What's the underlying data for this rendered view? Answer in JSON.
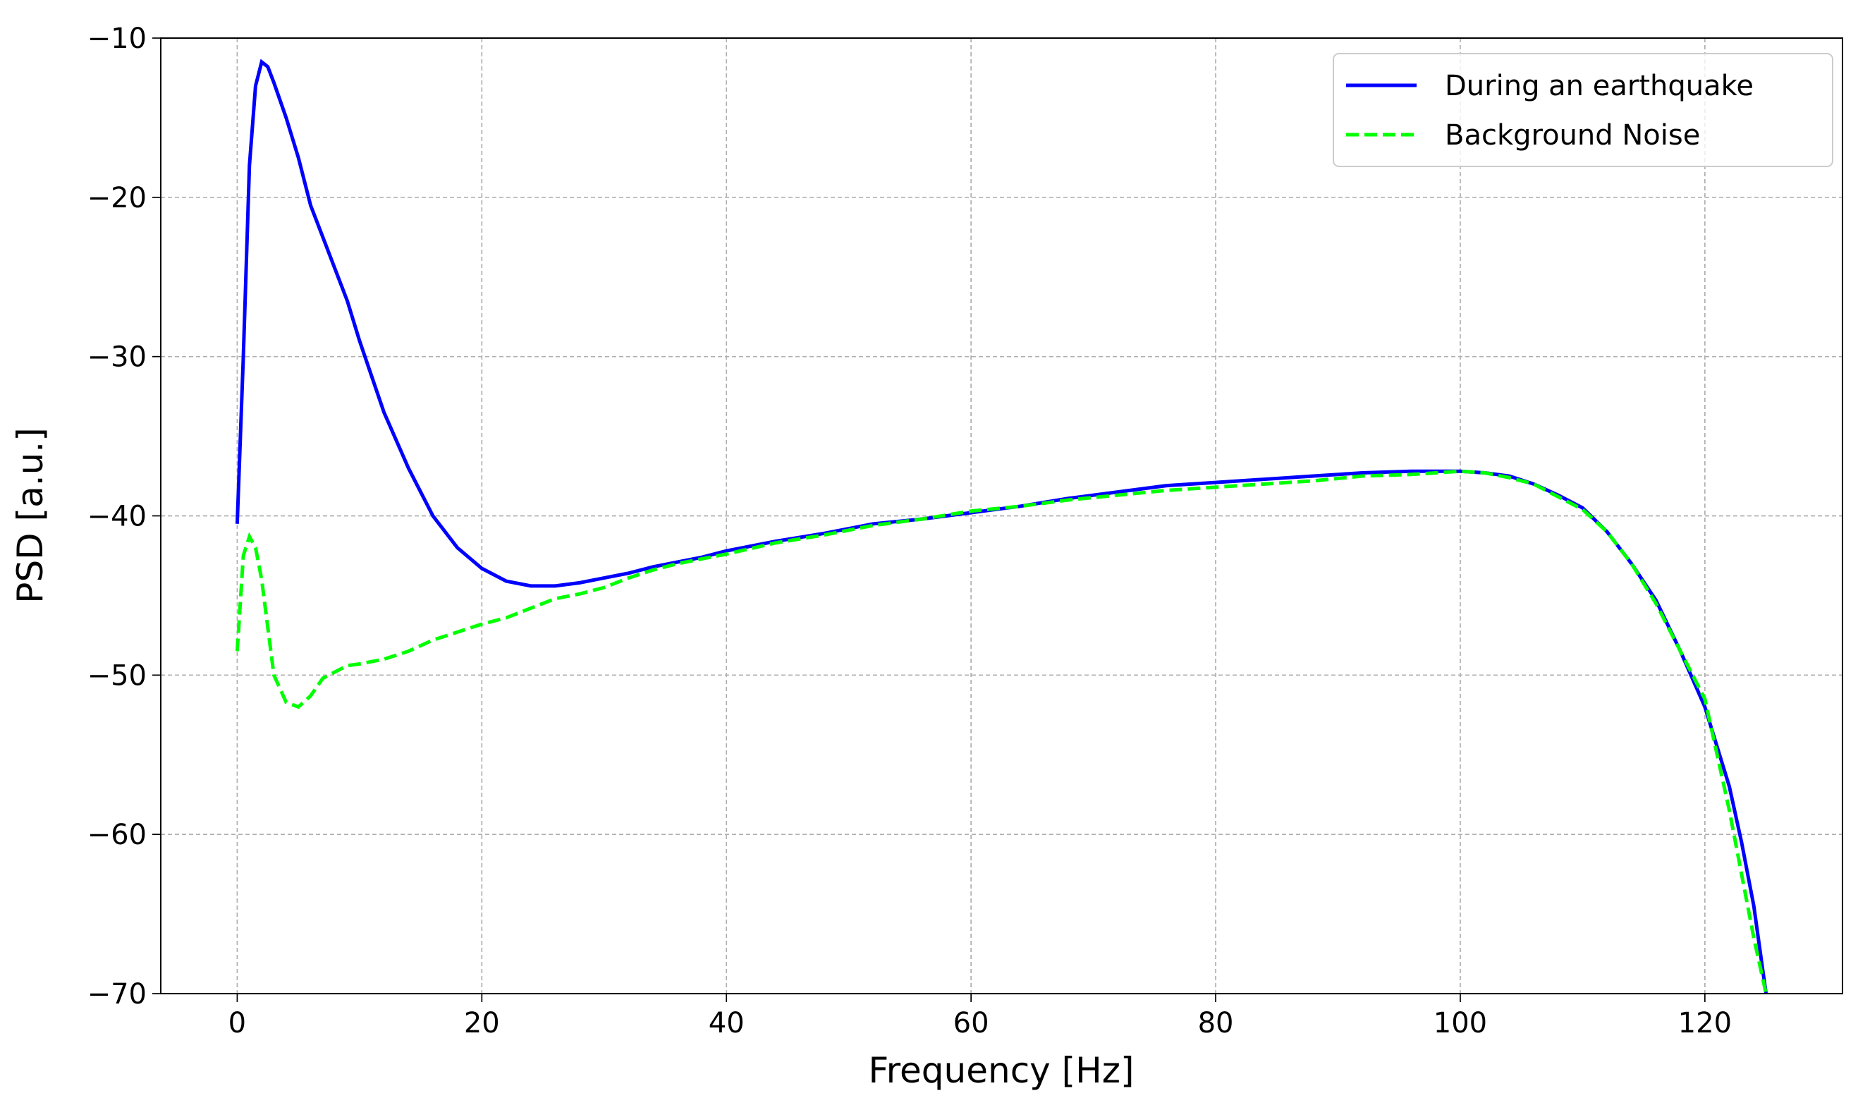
{
  "chart_data": {
    "type": "line",
    "x_label": "Frequency [Hz]",
    "y_label": "PSD [a.u.]",
    "x": [
      0,
      0.5,
      1,
      1.5,
      2,
      2.5,
      3,
      4,
      5,
      6,
      7,
      8,
      9,
      10,
      12,
      14,
      16,
      18,
      20,
      22,
      24,
      26,
      28,
      30,
      32,
      34,
      36,
      38,
      40,
      44,
      48,
      52,
      56,
      60,
      64,
      68,
      72,
      76,
      80,
      84,
      88,
      92,
      96,
      100,
      102,
      104,
      106,
      108,
      110,
      112,
      114,
      116,
      118,
      120,
      121,
      122,
      123,
      124,
      125
    ],
    "series": [
      {
        "name": "During an earthquake",
        "color": "#0000ff",
        "linestyle": "solid",
        "values": [
          -40.5,
          -30,
          -18,
          -13,
          -11.5,
          -11.8,
          -12.8,
          -15,
          -17.5,
          -20.5,
          -22.5,
          -24.5,
          -26.5,
          -29,
          -33.5,
          -37,
          -40,
          -42,
          -43.3,
          -44.1,
          -44.4,
          -44.4,
          -44.2,
          -43.9,
          -43.6,
          -43.2,
          -42.9,
          -42.6,
          -42.2,
          -41.6,
          -41.1,
          -40.5,
          -40.2,
          -39.8,
          -39.4,
          -38.9,
          -38.5,
          -38.1,
          -37.9,
          -37.7,
          -37.5,
          -37.3,
          -37.2,
          -37.2,
          -37.3,
          -37.5,
          -38,
          -38.7,
          -39.5,
          -41,
          -43,
          -45.3,
          -48.5,
          -52,
          -54.5,
          -57,
          -60.5,
          -64.5,
          -70
        ]
      },
      {
        "name": "Background Noise",
        "color": "#00ff00",
        "linestyle": "dashed",
        "values": [
          -48.5,
          -42.5,
          -41.3,
          -42,
          -44,
          -47,
          -50,
          -51.7,
          -52,
          -51.3,
          -50.2,
          -49.8,
          -49.4,
          -49.3,
          -49,
          -48.5,
          -47.8,
          -47.3,
          -46.8,
          -46.4,
          -45.8,
          -45.2,
          -44.9,
          -44.5,
          -43.9,
          -43.4,
          -43,
          -42.7,
          -42.4,
          -41.7,
          -41.2,
          -40.6,
          -40.2,
          -39.7,
          -39.4,
          -39,
          -38.7,
          -38.4,
          -38.2,
          -38,
          -37.8,
          -37.5,
          -37.4,
          -37.2,
          -37.3,
          -37.6,
          -38,
          -38.8,
          -39.6,
          -41,
          -43,
          -45.5,
          -48.5,
          -51.5,
          -55,
          -58.5,
          -62.5,
          -66.5,
          -70
        ]
      }
    ],
    "xlim": [
      -6.25,
      131.25
    ],
    "ylim": [
      -70,
      -10
    ],
    "xticks": [
      0,
      20,
      40,
      60,
      80,
      100,
      120
    ],
    "yticks": [
      {
        "value": -70,
        "label": "−70"
      },
      {
        "value": -60,
        "label": "−60"
      },
      {
        "value": -50,
        "label": "−50"
      },
      {
        "value": -40,
        "label": "−40"
      },
      {
        "value": -30,
        "label": "−30"
      },
      {
        "value": -20,
        "label": "−20"
      },
      {
        "value": -10,
        "label": "−10"
      }
    ],
    "grid": true,
    "legend": "upper right"
  }
}
